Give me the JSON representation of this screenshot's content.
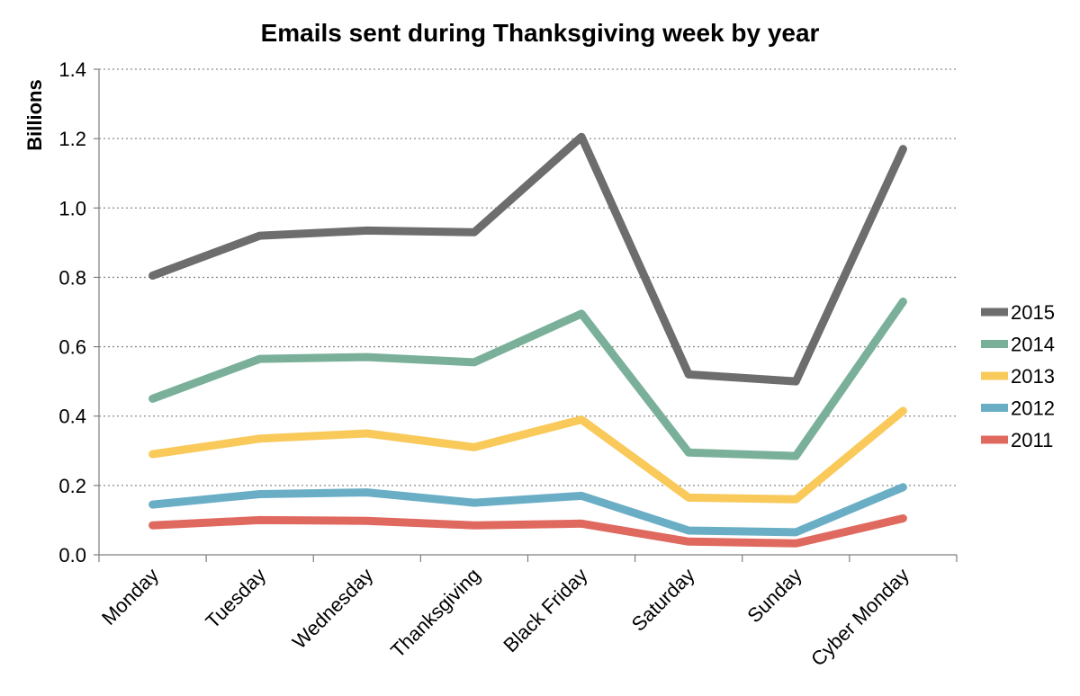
{
  "chart_data": {
    "type": "line",
    "title": "Emails sent during Thanksgiving week by year",
    "xlabel": "",
    "ylabel": "Billions",
    "ylim": [
      0,
      1.4
    ],
    "yticks": [
      "0.0",
      "0.2",
      "0.4",
      "0.6",
      "0.8",
      "1.0",
      "1.2",
      "1.4"
    ],
    "ytick_values": [
      0,
      0.2,
      0.4,
      0.6,
      0.8,
      1.0,
      1.2,
      1.4
    ],
    "grid": true,
    "legend_position": "right",
    "categories": [
      "Monday",
      "Tuesday",
      "Wednesday",
      "Thanksgiving",
      "Black Friday",
      "Saturday",
      "Sunday",
      "Cyber Monday"
    ],
    "series": [
      {
        "name": "2015",
        "color": "#6d6d6d",
        "values": [
          0.805,
          0.92,
          0.935,
          0.93,
          1.205,
          0.52,
          0.5,
          1.17
        ]
      },
      {
        "name": "2014",
        "color": "#7ab09a",
        "values": [
          0.45,
          0.565,
          0.57,
          0.555,
          0.695,
          0.295,
          0.285,
          0.73
        ]
      },
      {
        "name": "2013",
        "color": "#f9c95a",
        "values": [
          0.29,
          0.335,
          0.35,
          0.31,
          0.39,
          0.165,
          0.16,
          0.415
        ]
      },
      {
        "name": "2012",
        "color": "#6aaec6",
        "values": [
          0.145,
          0.175,
          0.18,
          0.15,
          0.17,
          0.07,
          0.065,
          0.195
        ]
      },
      {
        "name": "2011",
        "color": "#e0695f",
        "values": [
          0.085,
          0.1,
          0.098,
          0.085,
          0.09,
          0.038,
          0.033,
          0.105
        ]
      }
    ]
  }
}
